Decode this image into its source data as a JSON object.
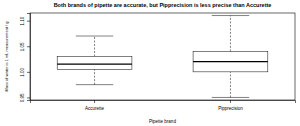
{
  "chart_data": {
    "type": "box",
    "title": "Both brands of pipette are accurate, but Pipprecision is less precise than Accurette",
    "x_label": "Pipette brand",
    "y_label": "Mass of water in 1 mL measurement / g",
    "categories": [
      "Accurette",
      "Pipprecision"
    ],
    "stats": [
      {
        "min": 0.975,
        "q1": 1.005,
        "median": 1.015,
        "q3": 1.03,
        "max": 1.07
      },
      {
        "min": 0.95,
        "q1": 1.0,
        "median": 1.02,
        "q3": 1.04,
        "max": 1.11
      }
    ],
    "color": "#000000",
    "line_style": "dashed",
    "ylim": [
      0.945,
      1.115
    ],
    "yticks": [
      0.95,
      {
        "value": 1.0,
        "label": "1.00"
      },
      1.05,
      {
        "value": 1.1,
        "label": "1.10"
      }
    ]
  }
}
